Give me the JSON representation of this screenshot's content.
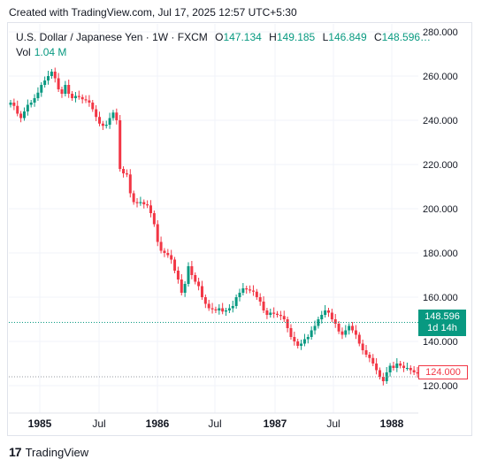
{
  "caption": "Created with TradingView.com, Jul 17, 2025 12:57 UTC+5:30",
  "legend": {
    "symbol": "U.S. Dollar / Japanese Yen · 1W · FXCM",
    "o_label": "O",
    "o_value": "147.134",
    "h_label": "H",
    "h_value": "149.185",
    "l_label": "L",
    "l_value": "146.849",
    "c_label": "C",
    "c_value": "148.596…",
    "vol_label": "Vol",
    "vol_value": "1.04 M"
  },
  "badges": {
    "last_price": "148.596",
    "countdown": "1d 14h",
    "ref_price": "124.000"
  },
  "footer": {
    "logo": "17",
    "brand": "TradingView"
  },
  "colors": {
    "up": "#089981",
    "down": "#f23645",
    "grid": "#f0f3fa",
    "axis_text": "#131722"
  },
  "chart_data": {
    "type": "candlestick",
    "title": "U.S. Dollar / Japanese Yen · 1W · FXCM",
    "x_ticks": [
      "1985",
      "Jul",
      "1986",
      "Jul",
      "1987",
      "Jul",
      "1988"
    ],
    "x_tick_dates": [
      "1985-01",
      "1985-07",
      "1986-01",
      "1986-07",
      "1987-01",
      "1987-07",
      "1988-01"
    ],
    "y_ticks": [
      "120.000",
      "140.000",
      "160.000",
      "180.000",
      "200.000",
      "220.000",
      "240.000",
      "260.000",
      "280.000"
    ],
    "ylim": [
      116,
      282
    ],
    "grid": true,
    "last_price": 148.596,
    "ref_price": 124.0,
    "closes": [
      248.0,
      246.5,
      243.0,
      241.0,
      244.0,
      247.0,
      248.0,
      250.0,
      252.5,
      256.0,
      258.0,
      260.0,
      262.0,
      259.0,
      254.0,
      252.0,
      256.0,
      252.0,
      250.0,
      251.0,
      250.5,
      249.5,
      249.0,
      248.0,
      245.0,
      241.5,
      238.5,
      237.5,
      238.0,
      241.0,
      243.5,
      240.0,
      218.0,
      216.0,
      215.5,
      207.0,
      203.0,
      202.5,
      203.0,
      202.0,
      201.5,
      198.0,
      193.0,
      185.0,
      181.0,
      180.0,
      179.0,
      177.0,
      172.0,
      168.0,
      162.0,
      166.0,
      174.0,
      170.0,
      167.0,
      165.0,
      160.0,
      157.0,
      155.0,
      154.5,
      154.0,
      155.0,
      153.5,
      154.0,
      155.0,
      156.0,
      160.0,
      162.0,
      164.0,
      163.5,
      163.0,
      162.5,
      160.0,
      158.0,
      154.0,
      152.0,
      153.0,
      152.5,
      152.0,
      151.5,
      150.0,
      146.0,
      142.0,
      140.0,
      138.0,
      139.0,
      141.0,
      142.0,
      145.0,
      147.0,
      150.0,
      152.0,
      154.0,
      153.0,
      150.0,
      148.0,
      144.5,
      143.0,
      145.0,
      147.0,
      145.0,
      143.0,
      139.0,
      136.0,
      134.0,
      132.5,
      130.0,
      127.0,
      124.0,
      122.0,
      126.0,
      129.0,
      128.0,
      130.0,
      129.0,
      128.0,
      128.0,
      127.0,
      126.0,
      125.5
    ]
  }
}
